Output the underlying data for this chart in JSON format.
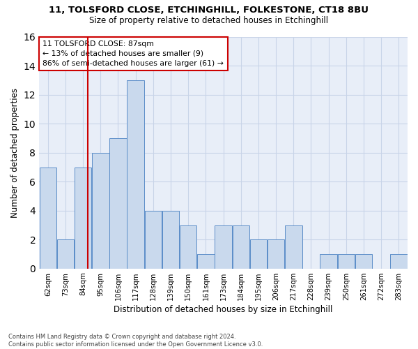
{
  "title1": "11, TOLSFORD CLOSE, ETCHINGHILL, FOLKESTONE, CT18 8BU",
  "title2": "Size of property relative to detached houses in Etchinghill",
  "xlabel": "Distribution of detached houses by size in Etchinghill",
  "ylabel": "Number of detached properties",
  "footer1": "Contains HM Land Registry data © Crown copyright and database right 2024.",
  "footer2": "Contains public sector information licensed under the Open Government Licence v3.0.",
  "annotation_line1": "11 TOLSFORD CLOSE: 87sqm",
  "annotation_line2": "← 13% of detached houses are smaller (9)",
  "annotation_line3": "86% of semi-detached houses are larger (61) →",
  "bar_labels": [
    "62sqm",
    "73sqm",
    "84sqm",
    "95sqm",
    "106sqm",
    "117sqm",
    "128sqm",
    "139sqm",
    "150sqm",
    "161sqm",
    "173sqm",
    "184sqm",
    "195sqm",
    "206sqm",
    "217sqm",
    "228sqm",
    "239sqm",
    "250sqm",
    "261sqm",
    "272sqm",
    "283sqm"
  ],
  "bar_values": [
    7,
    2,
    7,
    8,
    9,
    13,
    4,
    4,
    3,
    1,
    3,
    3,
    2,
    2,
    3,
    0,
    1,
    1,
    1,
    0,
    1
  ],
  "bar_color": "#c9d9ed",
  "bar_edge_color": "#5b8dc8",
  "grid_color": "#c8d4e8",
  "vline_color": "#cc0000",
  "vline_x": 87,
  "annotation_box_color": "#cc0000",
  "ylim": [
    0,
    16
  ],
  "yticks": [
    0,
    2,
    4,
    6,
    8,
    10,
    12,
    14,
    16
  ],
  "bg_color": "#e8eef8"
}
